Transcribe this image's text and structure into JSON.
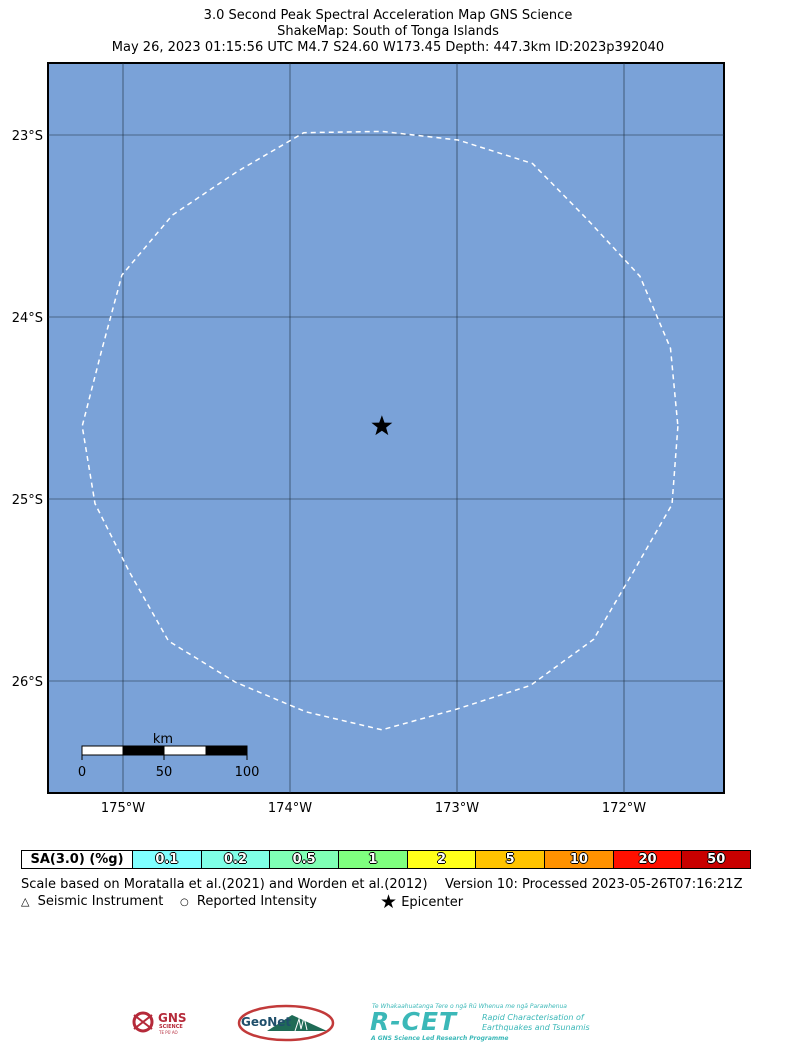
{
  "header": {
    "title_line1": "3.0 Second Peak Spectral Acceleration Map GNS Science",
    "title_line2": "ShakeMap: South of Tonga Islands",
    "title_line3": "May 26, 2023 01:15:56 UTC M4.7 S24.60 W173.45 Depth: 447.3km ID:2023p392040"
  },
  "map": {
    "background_color": "#7aa2d8",
    "contour_color": "#ffffff",
    "lat_labels": [
      "23°S",
      "24°S",
      "25°S",
      "26°S"
    ],
    "lon_labels": [
      "175°W",
      "174°W",
      "173°W",
      "172°W"
    ],
    "epicenter": {
      "lat": -24.6,
      "lon": -173.45
    },
    "scale_bar": {
      "unit": "km",
      "ticks": [
        "0",
        "50",
        "100"
      ]
    }
  },
  "legend": {
    "label": "SA(3.0) (%g)",
    "bins": [
      {
        "value": "0.1",
        "color": "#7fffff"
      },
      {
        "value": "0.2",
        "color": "#7fffe6"
      },
      {
        "value": "0.5",
        "color": "#7fffb5"
      },
      {
        "value": "1",
        "color": "#7fff7f"
      },
      {
        "value": "2",
        "color": "#ffff1a"
      },
      {
        "value": "5",
        "color": "#ffc400"
      },
      {
        "value": "10",
        "color": "#ff9200"
      },
      {
        "value": "20",
        "color": "#ff1000"
      },
      {
        "value": "50",
        "color": "#c80000"
      }
    ]
  },
  "notes": {
    "scale_text": "Scale based on Moratalla et al.(2021) and Worden et al.(2012)",
    "version_text": "Version 10: Processed 2023-05-26T07:16:21Z",
    "seismic_instrument": "Seismic Instrument",
    "reported_intensity": "Reported Intensity",
    "epicenter": "Epicenter"
  },
  "logos": {
    "gns": "GNS",
    "gns_sub": "SCIENCE",
    "gns_sub2": "TE PŪ AO",
    "geonet": "GeoNet",
    "rcet": "R-CET",
    "rcet_top": "Te Whakaahuatanga Tere o ngā Rū Whenua me ngā Parawhenua",
    "rcet_desc1": "Rapid Characterisation of",
    "rcet_desc2": "Earthquakes and Tsunamis",
    "rcet_bottom": "A GNS Science Led Research Programme"
  }
}
